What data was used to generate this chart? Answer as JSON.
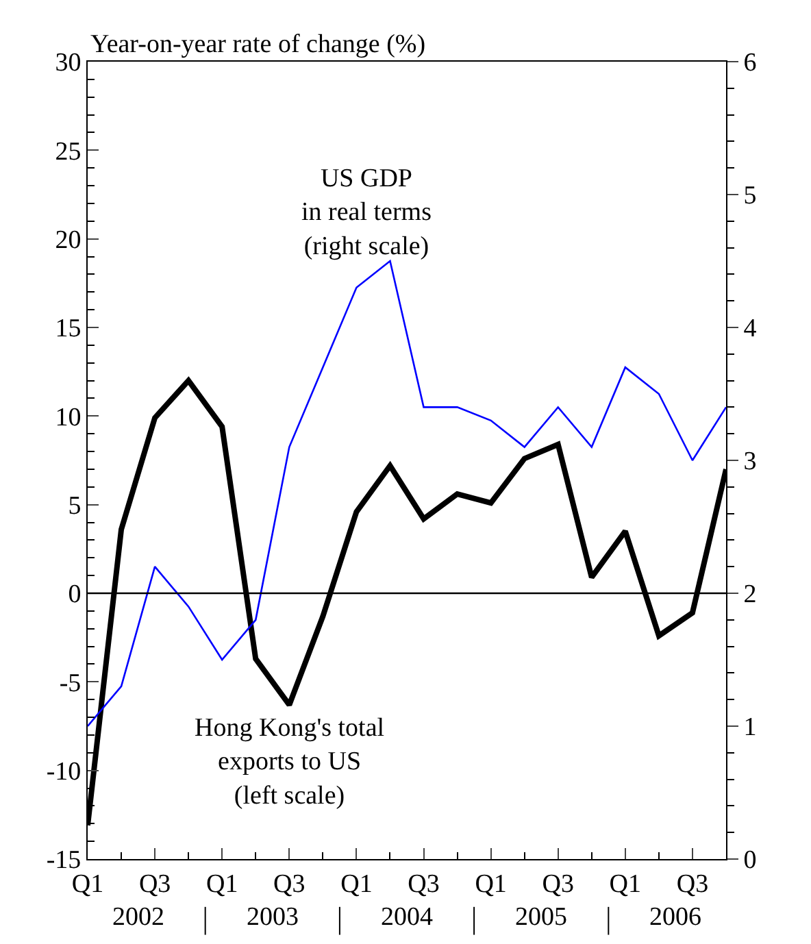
{
  "chart_data": {
    "type": "line",
    "ylabel": "Year-on-year rate of change (%)",
    "categories": [
      "Q1",
      null,
      "Q3",
      null,
      "Q1",
      null,
      "Q3",
      null,
      "Q1",
      null,
      "Q3",
      null,
      "Q1",
      null,
      "Q3",
      null,
      "Q1",
      null,
      "Q3",
      null
    ],
    "annotations": [
      "2002",
      "2003",
      "2004",
      "2005",
      "2006"
    ],
    "series": [
      {
        "name": "Hong Kong's total\nexports to US\n(left scale)",
        "color": "#000000",
        "values": [
          -13.1,
          3.6,
          9.9,
          12.0,
          9.4,
          -3.7,
          -6.3,
          -1.3,
          4.6,
          7.2,
          4.2,
          5.6,
          5.1,
          7.6,
          8.4,
          0.9,
          3.5,
          -2.4,
          -1.1,
          7.0
        ]
      },
      {
        "name": "US GDP\nin real terms\n(right scale)",
        "color": "#0000ff",
        "axis": "y2",
        "values": [
          1.0,
          1.3,
          2.2,
          1.9,
          1.5,
          1.8,
          3.1,
          3.7,
          4.3,
          4.5,
          3.4,
          3.4,
          3.3,
          3.1,
          3.4,
          3.1,
          3.7,
          3.5,
          3.0,
          3.4
        ]
      }
    ],
    "ylim": [
      -15,
      30
    ],
    "yticks": [
      -15,
      -10,
      -5,
      0,
      5,
      10,
      15,
      20,
      25,
      30
    ],
    "y2lim": [
      0,
      6
    ],
    "y2ticks": [
      0,
      1,
      2,
      3,
      4,
      5,
      6
    ],
    "ref_lines": [
      {
        "axis": "y",
        "value": 0,
        "color": "#000000"
      }
    ],
    "grid": false,
    "legend": false,
    "marker": "none",
    "line_style": "solid"
  }
}
